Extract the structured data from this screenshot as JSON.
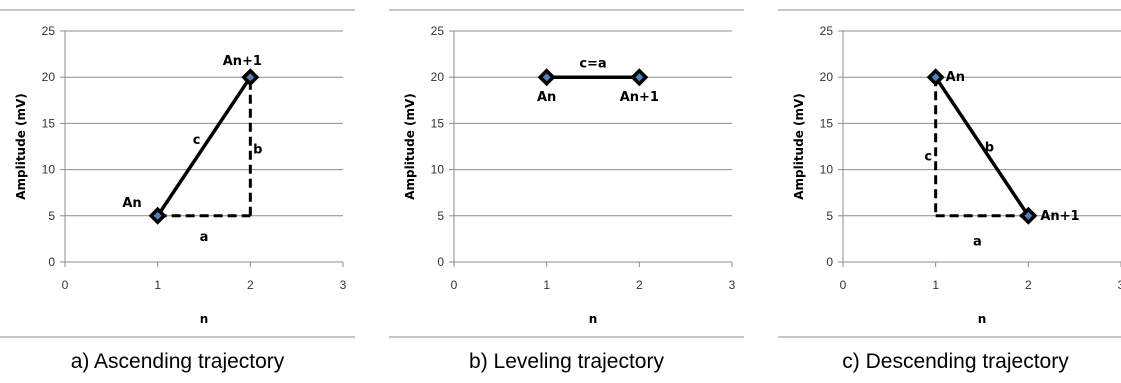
{
  "chart_data": [
    {
      "type": "line",
      "caption": "a) Ascending trajectory",
      "xlabel": "n",
      "ylabel": "Amplitude (mV)",
      "xlim": [
        0,
        3
      ],
      "ylim": [
        0,
        25
      ],
      "xticks": [
        0,
        1,
        2,
        3
      ],
      "yticks": [
        0,
        5,
        10,
        15,
        20,
        25
      ],
      "grid": "horizontal",
      "series": [
        {
          "x": [
            1,
            2
          ],
          "y": [
            5,
            20
          ]
        }
      ],
      "point_labels": [
        {
          "text": "An",
          "x": 1,
          "y": 5
        },
        {
          "text": "An+1",
          "x": 2,
          "y": 20
        }
      ],
      "dashed_legs": [
        {
          "x": [
            1,
            2
          ],
          "y": [
            5,
            5
          ]
        },
        {
          "x": [
            2,
            2
          ],
          "y": [
            5,
            20
          ]
        }
      ],
      "segment_labels": [
        {
          "text": "c",
          "x": 1.42,
          "y": 13.3
        },
        {
          "text": "b",
          "x": 2.08,
          "y": 12.3
        },
        {
          "text": "a",
          "x": 1.5,
          "y": 2.8
        }
      ],
      "colors": {
        "line": "#000000",
        "marker_outer": "#000000",
        "marker_inner": "#4f81bd"
      }
    },
    {
      "type": "line",
      "caption": "b) Leveling trajectory",
      "xlabel": "n",
      "ylabel": "Amplitude (mV)",
      "xlim": [
        0,
        3
      ],
      "ylim": [
        0,
        25
      ],
      "xticks": [
        0,
        1,
        2,
        3
      ],
      "yticks": [
        0,
        5,
        10,
        15,
        20,
        25
      ],
      "grid": "horizontal",
      "series": [
        {
          "x": [
            1,
            2
          ],
          "y": [
            20,
            20
          ]
        }
      ],
      "point_labels": [
        {
          "text": "An",
          "x": 1,
          "y": 20
        },
        {
          "text": "An+1",
          "x": 2,
          "y": 20
        }
      ],
      "dashed_legs": [],
      "segment_labels": [
        {
          "text": "c=a",
          "x": 1.5,
          "y": 21.6
        }
      ],
      "colors": {
        "line": "#000000",
        "marker_outer": "#000000",
        "marker_inner": "#4f81bd"
      }
    },
    {
      "type": "line",
      "caption": "c) Descending trajectory",
      "xlabel": "n",
      "ylabel": "Amplitude (mV)",
      "xlim": [
        0,
        3
      ],
      "ylim": [
        0,
        25
      ],
      "xticks": [
        0,
        1,
        2,
        3
      ],
      "yticks": [
        0,
        5,
        10,
        15,
        20,
        25
      ],
      "grid": "horizontal",
      "series": [
        {
          "x": [
            1,
            2
          ],
          "y": [
            20,
            5
          ]
        }
      ],
      "point_labels": [
        {
          "text": "An",
          "x": 1,
          "y": 20
        },
        {
          "text": "An+1",
          "x": 2,
          "y": 5
        }
      ],
      "dashed_legs": [
        {
          "x": [
            1,
            1
          ],
          "y": [
            20,
            5
          ]
        },
        {
          "x": [
            1,
            2
          ],
          "y": [
            5,
            5
          ]
        }
      ],
      "segment_labels": [
        {
          "text": "c",
          "x": 0.92,
          "y": 11.5
        },
        {
          "text": "b",
          "x": 1.58,
          "y": 12.5
        },
        {
          "text": "a",
          "x": 1.45,
          "y": 2.3
        }
      ],
      "colors": {
        "line": "#000000",
        "marker_outer": "#000000",
        "marker_inner": "#4f81bd"
      }
    }
  ]
}
